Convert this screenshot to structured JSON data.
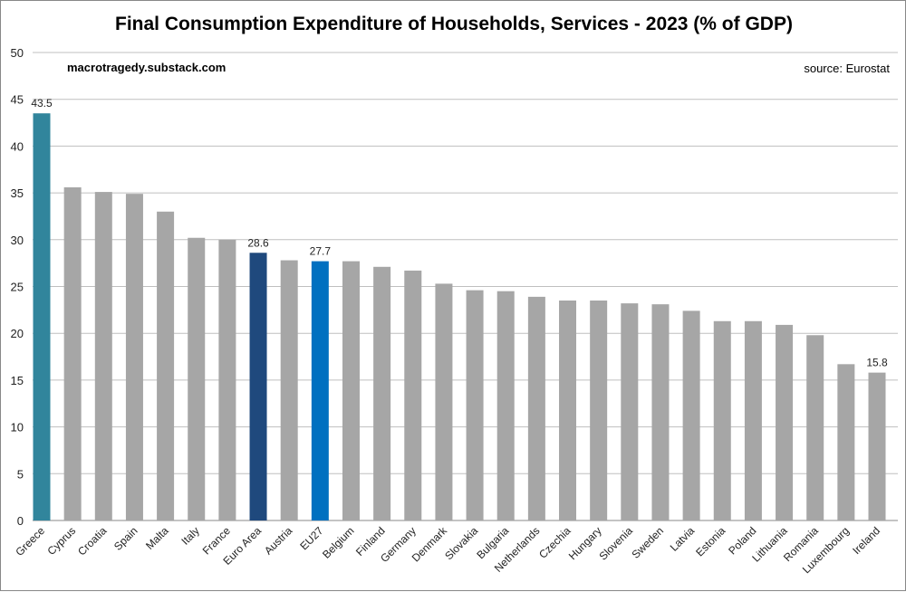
{
  "chart_data": {
    "type": "bar",
    "title": "Final Consumption Expenditure of Households, Services - 2023 (% of GDP)",
    "annotations": {
      "site": "macrotragedy.substack.com",
      "source": "source: Eurostat"
    },
    "categories": [
      "Greece",
      "Cyprus",
      "Croatia",
      "Spain",
      "Malta",
      "Italy",
      "France",
      "Euro Area",
      "Austria",
      "EU27",
      "Belgium",
      "Finland",
      "Germany",
      "Denmark",
      "Slovakia",
      "Bulgaria",
      "Netherlands",
      "Czechia",
      "Hungary",
      "Slovenia",
      "Sweden",
      "Latvia",
      "Estonia",
      "Poland",
      "Lithuania",
      "Romania",
      "Luxembourg",
      "Ireland"
    ],
    "values": [
      43.5,
      35.6,
      35.1,
      34.9,
      33.0,
      30.2,
      30.0,
      28.6,
      27.8,
      27.7,
      27.7,
      27.1,
      26.7,
      25.3,
      24.6,
      24.5,
      23.9,
      23.5,
      23.5,
      23.2,
      23.1,
      22.4,
      21.3,
      21.3,
      20.9,
      19.8,
      16.7,
      15.8
    ],
    "data_labels": {
      "Greece": "43.5",
      "Euro Area": "28.6",
      "EU27": "27.7",
      "Ireland": "15.8"
    },
    "ylim": [
      0,
      50
    ],
    "yticks": [
      0,
      5,
      10,
      15,
      20,
      25,
      30,
      35,
      40,
      45,
      50
    ],
    "grid": true,
    "xlabel": "",
    "ylabel": "",
    "colors": {
      "default": "#a6a6a6",
      "Greece": "#31859c",
      "Euro Area": "#1f497d",
      "EU27": "#0070c0",
      "grid": "#bfbfbf"
    }
  }
}
